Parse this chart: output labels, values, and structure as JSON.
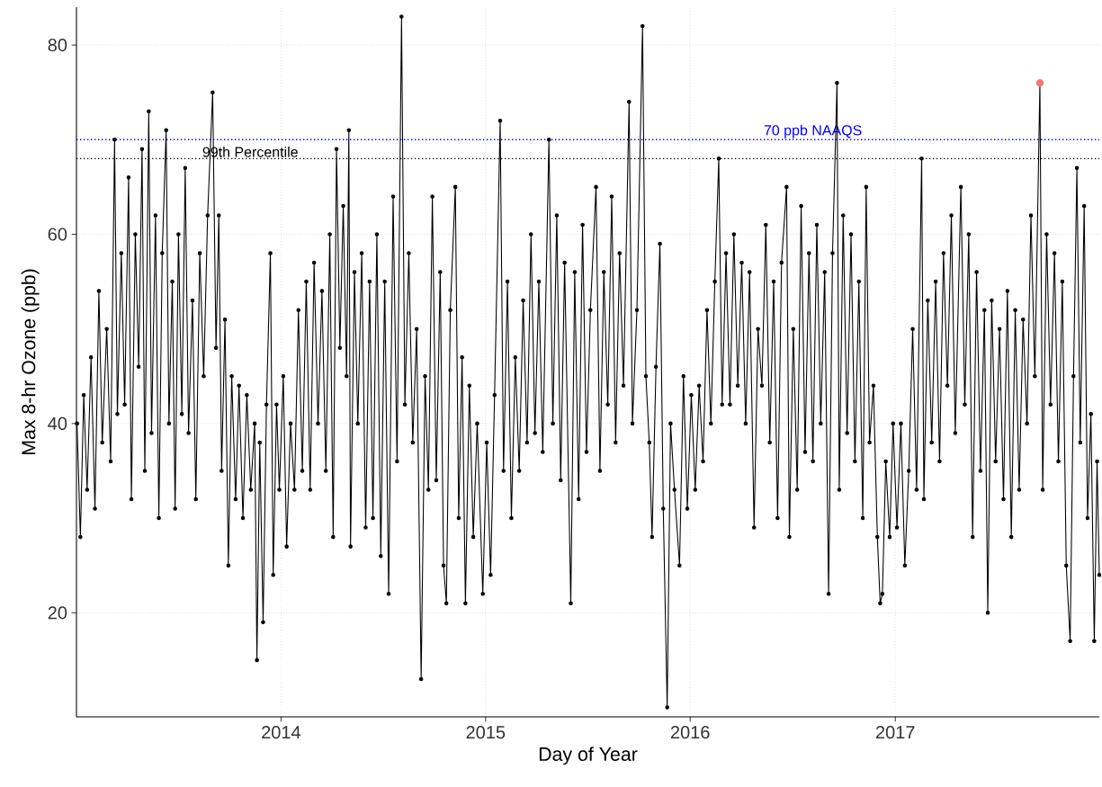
{
  "chart_data": {
    "type": "line",
    "xlabel": "Day of Year",
    "ylabel": "Max 8-hr Ozone (ppb)",
    "xlim": [
      "2013-01-01",
      "2017-12-31"
    ],
    "xticks": [
      {
        "value": "2014-01-01",
        "label": "2014"
      },
      {
        "value": "2015-01-01",
        "label": "2015"
      },
      {
        "value": "2016-01-01",
        "label": "2016"
      },
      {
        "value": "2017-01-01",
        "label": "2017"
      }
    ],
    "ylim": [
      9,
      84
    ],
    "yticks": [
      20,
      40,
      60,
      80
    ],
    "grid": true,
    "marker": "circle",
    "ref_lines": [
      {
        "axis": "y",
        "value": 70,
        "label": "70 ppb NAAQS",
        "color": "#0000ff",
        "line_style": "dotted"
      },
      {
        "axis": "y",
        "value": 68,
        "label": "99th Percentile",
        "color": "#000000",
        "line_style": "dotted"
      }
    ],
    "series": [
      {
        "color": "#000000",
        "x": [
          "2013-01-02",
          "2013-01-08",
          "2013-01-14",
          "2013-01-20",
          "2013-01-27",
          "2013-02-03",
          "2013-02-10",
          "2013-02-16",
          "2013-02-24",
          "2013-03-03",
          "2013-03-10",
          "2013-03-15",
          "2013-03-22",
          "2013-03-28",
          "2013-04-04",
          "2013-04-09",
          "2013-04-16",
          "2013-04-22",
          "2013-04-28",
          "2013-05-03",
          "2013-05-10",
          "2013-05-15",
          "2013-05-22",
          "2013-05-28",
          "2013-06-03",
          "2013-06-10",
          "2013-06-15",
          "2013-06-21",
          "2013-06-26",
          "2013-07-02",
          "2013-07-08",
          "2013-07-14",
          "2013-07-20",
          "2013-07-27",
          "2013-08-02",
          "2013-08-09",
          "2013-08-16",
          "2013-08-23",
          "2013-09-01",
          "2013-09-07",
          "2013-09-12",
          "2013-09-17",
          "2013-09-23",
          "2013-09-29",
          "2013-10-05",
          "2013-10-12",
          "2013-10-18",
          "2013-10-25",
          "2013-11-01",
          "2013-11-08",
          "2013-11-15",
          "2013-11-19",
          "2013-11-24",
          "2013-11-30",
          "2013-12-06",
          "2013-12-13",
          "2013-12-18",
          "2013-12-24",
          "2013-12-29",
          "2014-01-05",
          "2014-01-11",
          "2014-01-18",
          "2014-01-25",
          "2014-02-01",
          "2014-02-08",
          "2014-02-15",
          "2014-02-22",
          "2014-03-01",
          "2014-03-08",
          "2014-03-15",
          "2014-03-22",
          "2014-03-29",
          "2014-04-04",
          "2014-04-10",
          "2014-04-16",
          "2014-04-22",
          "2014-04-28",
          "2014-05-02",
          "2014-05-05",
          "2014-05-12",
          "2014-05-18",
          "2014-05-25",
          "2014-06-01",
          "2014-06-08",
          "2014-06-14",
          "2014-06-21",
          "2014-06-28",
          "2014-07-05",
          "2014-07-12",
          "2014-07-20",
          "2014-07-27",
          "2014-08-04",
          "2014-08-10",
          "2014-08-17",
          "2014-08-24",
          "2014-08-31",
          "2014-09-08",
          "2014-09-15",
          "2014-09-21",
          "2014-09-28",
          "2014-10-05",
          "2014-10-12",
          "2014-10-18",
          "2014-10-23",
          "2014-10-30",
          "2014-11-08",
          "2014-11-14",
          "2014-11-20",
          "2014-11-26",
          "2014-12-03",
          "2014-12-10",
          "2014-12-17",
          "2014-12-27",
          "2015-01-03",
          "2015-01-10",
          "2015-01-17",
          "2015-01-27",
          "2015-02-02",
          "2015-02-09",
          "2015-02-16",
          "2015-02-23",
          "2015-03-02",
          "2015-03-09",
          "2015-03-16",
          "2015-03-23",
          "2015-03-30",
          "2015-04-06",
          "2015-04-13",
          "2015-04-24",
          "2015-05-01",
          "2015-05-08",
          "2015-05-15",
          "2015-05-22",
          "2015-06-02",
          "2015-06-09",
          "2015-06-16",
          "2015-06-23",
          "2015-06-30",
          "2015-07-07",
          "2015-07-17",
          "2015-07-24",
          "2015-07-31",
          "2015-08-07",
          "2015-08-14",
          "2015-08-21",
          "2015-08-28",
          "2015-09-04",
          "2015-09-14",
          "2015-09-20",
          "2015-09-28",
          "2015-10-08",
          "2015-10-14",
          "2015-10-20",
          "2015-10-25",
          "2015-11-01",
          "2015-11-08",
          "2015-11-14",
          "2015-11-21",
          "2015-11-27",
          "2015-12-04",
          "2015-12-13",
          "2015-12-20",
          "2015-12-27",
          "2016-01-03",
          "2016-01-10",
          "2016-01-17",
          "2016-01-24",
          "2016-01-31",
          "2016-02-07",
          "2016-02-14",
          "2016-02-21",
          "2016-02-27",
          "2016-03-05",
          "2016-03-12",
          "2016-03-19",
          "2016-03-26",
          "2016-04-02",
          "2016-04-09",
          "2016-04-16",
          "2016-04-24",
          "2016-05-01",
          "2016-05-08",
          "2016-05-15",
          "2016-05-22",
          "2016-05-29",
          "2016-06-05",
          "2016-06-12",
          "2016-06-21",
          "2016-06-26",
          "2016-07-03",
          "2016-07-10",
          "2016-07-17",
          "2016-07-24",
          "2016-07-31",
          "2016-08-07",
          "2016-08-14",
          "2016-08-21",
          "2016-08-28",
          "2016-09-04",
          "2016-09-11",
          "2016-09-19",
          "2016-09-23",
          "2016-09-30",
          "2016-10-07",
          "2016-10-14",
          "2016-10-21",
          "2016-10-28",
          "2016-11-04",
          "2016-11-10",
          "2016-11-16",
          "2016-11-23",
          "2016-11-30",
          "2016-12-05",
          "2016-12-09",
          "2016-12-15",
          "2016-12-22",
          "2016-12-28",
          "2017-01-04",
          "2017-01-11",
          "2017-01-18",
          "2017-01-25",
          "2017-02-01",
          "2017-02-08",
          "2017-02-17",
          "2017-02-21",
          "2017-02-28",
          "2017-03-07",
          "2017-03-14",
          "2017-03-21",
          "2017-03-28",
          "2017-04-04",
          "2017-04-11",
          "2017-04-18",
          "2017-04-28",
          "2017-05-05",
          "2017-05-12",
          "2017-05-19",
          "2017-05-26",
          "2017-06-02",
          "2017-06-09",
          "2017-06-15",
          "2017-06-22",
          "2017-06-29",
          "2017-07-06",
          "2017-07-13",
          "2017-07-20",
          "2017-07-27",
          "2017-08-03",
          "2017-08-10",
          "2017-08-17",
          "2017-08-24",
          "2017-08-31",
          "2017-09-07",
          "2017-09-16",
          "2017-09-21",
          "2017-09-28",
          "2017-10-05",
          "2017-10-12",
          "2017-10-19",
          "2017-10-26",
          "2017-11-02",
          "2017-11-09",
          "2017-11-15",
          "2017-11-21",
          "2017-11-27",
          "2017-12-04",
          "2017-12-10",
          "2017-12-16",
          "2017-12-22",
          "2017-12-27",
          "2017-12-31"
        ],
        "values": [
          40,
          28,
          43,
          33,
          47,
          31,
          54,
          38,
          50,
          36,
          70,
          41,
          58,
          42,
          66,
          32,
          60,
          46,
          69,
          35,
          73,
          39,
          62,
          30,
          58,
          71,
          40,
          55,
          31,
          60,
          41,
          67,
          39,
          53,
          32,
          58,
          45,
          62,
          75,
          48,
          62,
          35,
          51,
          25,
          45,
          32,
          44,
          30,
          43,
          33,
          40,
          15,
          38,
          19,
          42,
          58,
          24,
          42,
          33,
          45,
          27,
          40,
          33,
          52,
          35,
          55,
          33,
          57,
          40,
          54,
          35,
          60,
          28,
          69,
          48,
          63,
          45,
          71,
          27,
          56,
          40,
          58,
          29,
          55,
          30,
          60,
          26,
          55,
          22,
          64,
          36,
          83,
          42,
          58,
          38,
          50,
          13,
          45,
          33,
          64,
          34,
          56,
          25,
          21,
          52,
          65,
          30,
          47,
          21,
          44,
          28,
          40,
          22,
          38,
          24,
          43,
          72,
          35,
          55,
          30,
          47,
          35,
          53,
          38,
          60,
          39,
          55,
          37,
          70,
          40,
          62,
          34,
          57,
          21,
          56,
          32,
          61,
          37,
          52,
          65,
          35,
          56,
          42,
          64,
          38,
          58,
          44,
          74,
          40,
          52,
          82,
          45,
          38,
          28,
          46,
          59,
          31,
          10,
          40,
          33,
          25,
          45,
          31,
          43,
          33,
          44,
          36,
          52,
          40,
          55,
          68,
          42,
          58,
          42,
          60,
          44,
          57,
          40,
          56,
          29,
          50,
          44,
          61,
          38,
          55,
          30,
          57,
          65,
          28,
          50,
          33,
          63,
          37,
          58,
          36,
          61,
          40,
          56,
          22,
          58,
          76,
          33,
          62,
          39,
          60,
          36,
          55,
          30,
          65,
          38,
          44,
          28,
          21,
          22,
          36,
          28,
          40,
          29,
          40,
          25,
          35,
          50,
          33,
          68,
          32,
          53,
          38,
          55,
          36,
          58,
          44,
          62,
          39,
          65,
          42,
          60,
          28,
          56,
          35,
          52,
          20,
          53,
          36,
          50,
          32,
          54,
          28,
          52,
          33,
          51,
          40,
          62,
          45,
          76,
          33,
          60,
          42,
          58,
          36,
          55,
          25,
          17,
          45,
          67,
          38,
          63,
          30,
          41,
          17,
          36,
          24
        ]
      },
      {
        "type": "scatter",
        "color": "#f8766d",
        "x": [
          "2017-09-16"
        ],
        "values": [
          76
        ]
      }
    ]
  }
}
